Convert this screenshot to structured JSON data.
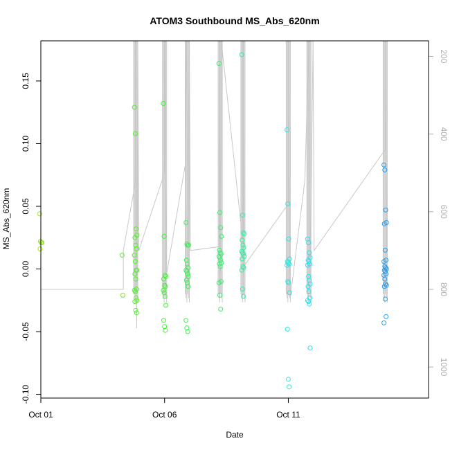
{
  "chart_data": {
    "type": "scatter",
    "title": "ATOM3 Southbound MS_Abs_620nm",
    "xlabel": "Date",
    "ylabel": "MS_Abs_620nm",
    "ylim": [
      -0.103,
      0.182
    ],
    "y2lim": [
      1080,
      160
    ],
    "y2_reversed": true,
    "xlim": [
      "2023-10-01T00:00",
      "2023-10-16T16:00"
    ],
    "x_ticks": [
      {
        "x": "2023-10-01T00:00",
        "label": "Oct 01"
      },
      {
        "x": "2023-10-06T00:00",
        "label": "Oct 06"
      },
      {
        "x": "2023-10-11T00:00",
        "label": "Oct 11"
      }
    ],
    "y_ticks": [
      {
        "value": -0.1,
        "label": "-0.10"
      },
      {
        "value": -0.05,
        "label": "-0.05"
      },
      {
        "value": 0.0,
        "label": "0.00"
      },
      {
        "value": 0.05,
        "label": "0.05"
      },
      {
        "value": 0.1,
        "label": "0.10"
      },
      {
        "value": 0.15,
        "label": "0.15"
      }
    ],
    "y2_ticks": [
      {
        "value": 200,
        "label": "200"
      },
      {
        "value": 400,
        "label": "400"
      },
      {
        "value": 600,
        "label": "600"
      },
      {
        "value": 800,
        "label": "800"
      },
      {
        "value": 1000,
        "label": "1000"
      }
    ],
    "point_series": [
      {
        "color": "#9be628",
        "x": "2023-10-01T00:00",
        "y": [
          0.044,
          0.022,
          0.021,
          0.021,
          0.016
        ]
      },
      {
        "color": "#6ee828",
        "x": "2023-10-04T08:00",
        "y": [
          0.011,
          -0.021
        ]
      },
      {
        "color": "#55ee2e",
        "x": "2023-10-04T20:00",
        "y": [
          0.129,
          0.108,
          0.032,
          0.027,
          0.025,
          0.019,
          0.016,
          0.011,
          0.006,
          -0.001,
          -0.001,
          -0.004,
          -0.008,
          -0.016,
          -0.017,
          -0.018,
          -0.023,
          -0.025,
          -0.026,
          -0.033,
          -0.035
        ]
      },
      {
        "color": "#45ef3a",
        "x": "2023-10-06T00:00",
        "y": [
          0.132,
          0.026,
          -0.005,
          -0.006,
          -0.008,
          -0.013,
          -0.014,
          -0.017,
          -0.019,
          -0.022,
          -0.029,
          -0.041,
          -0.046,
          -0.049
        ]
      },
      {
        "color": "#3cef52",
        "x": "2023-10-06T22:00",
        "y": [
          0.037,
          0.02,
          0.019,
          0.019,
          0.007,
          0.004,
          0.001,
          -0.001,
          -0.002,
          -0.004,
          -0.006,
          -0.009,
          -0.011,
          -0.014,
          -0.041,
          -0.047,
          -0.05
        ]
      },
      {
        "color": "#37ef70",
        "x": "2023-10-08T06:00",
        "y": [
          0.164,
          0.045,
          0.033,
          0.026,
          0.015,
          0.013,
          0.012,
          0.01,
          0.009,
          0.007,
          0.005,
          0.004,
          0.002,
          -0.01,
          -0.011,
          -0.021,
          -0.032
        ]
      },
      {
        "color": "#32efa0",
        "x": "2023-10-09T04:00",
        "y": [
          0.171,
          0.043,
          0.029,
          0.028,
          0.023,
          0.019,
          0.017,
          0.014,
          0.013,
          0.012,
          0.01,
          0.008,
          0.002,
          0.001,
          -0.001,
          -0.016,
          -0.022
        ]
      },
      {
        "color": "#2ae8e0",
        "x": "2023-10-11T00:00",
        "y": [
          0.111,
          0.052,
          0.024,
          0.008,
          0.006,
          0.005,
          0.004,
          0.003,
          -0.01,
          -0.011,
          -0.019,
          -0.048,
          -0.088,
          -0.094
        ]
      },
      {
        "color": "#2ae0f0",
        "x": "2023-10-11T20:00",
        "y": [
          0.024,
          0.021,
          0.013,
          0.009,
          0.007,
          0.006,
          0.004,
          0.003,
          -0.006,
          -0.009,
          -0.012,
          -0.014,
          -0.018,
          -0.023,
          -0.025,
          -0.026,
          -0.028,
          -0.063
        ]
      },
      {
        "color": "#2a9be8",
        "x": "2023-10-14T22:00",
        "y": [
          0.083,
          0.079,
          0.047,
          0.037,
          0.036,
          0.015,
          0.007,
          0.006,
          0.002,
          0.001,
          0.0,
          -0.001,
          -0.002,
          -0.004,
          -0.005,
          -0.008,
          -0.012,
          -0.013,
          -0.014,
          -0.024,
          -0.038,
          -0.043
        ]
      }
    ],
    "depth_series": {
      "color": "#c8c8c8",
      "points": [
        {
          "x": "2023-10-01T00:00",
          "y": 280
        },
        {
          "x": "2023-10-01T00:00",
          "y": 200
        },
        {
          "x": "2023-10-01T00:00",
          "y": 800
        },
        {
          "x": "2023-10-04T08:00",
          "y": 800
        },
        {
          "x": "2023-10-04T08:00",
          "y": 700
        },
        {
          "x": "2023-10-04T20:00",
          "y": 520
        },
        {
          "x": "2023-10-04T20:00",
          "y": 160
        },
        {
          "x": "2023-10-04T21:00",
          "y": 900
        },
        {
          "x": "2023-10-04T22:00",
          "y": 160
        },
        {
          "x": "2023-10-04T23:00",
          "y": 700
        },
        {
          "x": "2023-10-06T00:00",
          "y": 500
        },
        {
          "x": "2023-10-06T00:00",
          "y": 160
        },
        {
          "x": "2023-10-06T02:00",
          "y": 760
        },
        {
          "x": "2023-10-06T20:00",
          "y": 480
        },
        {
          "x": "2023-10-06T21:00",
          "y": 160
        },
        {
          "x": "2023-10-06T23:00",
          "y": 780
        },
        {
          "x": "2023-10-07T00:00",
          "y": 160
        },
        {
          "x": "2023-10-07T01:00",
          "y": 700
        },
        {
          "x": "2023-10-08T05:00",
          "y": 690
        },
        {
          "x": "2023-10-08T05:30",
          "y": 160
        },
        {
          "x": "2023-10-08T06:00",
          "y": 760
        },
        {
          "x": "2023-10-08T07:00",
          "y": 160
        },
        {
          "x": "2023-10-09T04:00",
          "y": 680
        },
        {
          "x": "2023-10-09T04:00",
          "y": 160
        },
        {
          "x": "2023-10-09T05:00",
          "y": 740
        },
        {
          "x": "2023-10-11T00:00",
          "y": 580
        },
        {
          "x": "2023-10-11T00:00",
          "y": 160
        },
        {
          "x": "2023-10-11T02:00",
          "y": 820
        },
        {
          "x": "2023-10-11T16:00",
          "y": 520
        },
        {
          "x": "2023-10-11T20:00",
          "y": 160
        },
        {
          "x": "2023-10-11T21:00",
          "y": 820
        },
        {
          "x": "2023-10-12T00:00",
          "y": 160
        },
        {
          "x": "2023-10-12T01:00",
          "y": 700
        },
        {
          "x": "2023-10-14T22:00",
          "y": 440
        },
        {
          "x": "2023-10-14T22:00",
          "y": 160
        },
        {
          "x": "2023-10-15T00:00",
          "y": 760
        }
      ]
    },
    "axis_color": "#000000",
    "right_axis_color": "#b0b0b0",
    "grid": false,
    "legend": "none"
  }
}
